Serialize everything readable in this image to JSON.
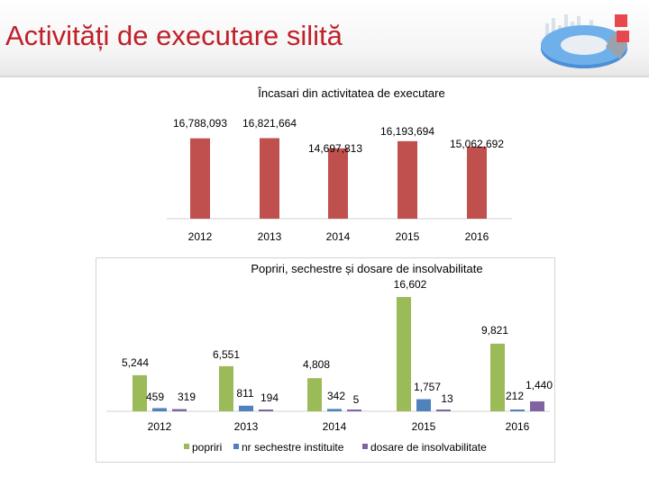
{
  "header": {
    "title": "Activități de executare silită"
  },
  "colors": {
    "title_red": "#c0202a",
    "bar_red": "#c0504d",
    "green": "#9bbb59",
    "blue": "#4f81bd",
    "purple": "#8064a2"
  },
  "chart_data": [
    {
      "type": "bar",
      "title": "Încasari din activitatea de executare",
      "categories": [
        "2012",
        "2013",
        "2014",
        "2015",
        "2016"
      ],
      "values": [
        16788093,
        16821664,
        14697813,
        16193694,
        15062692
      ],
      "value_labels": [
        "16,788,093",
        "16,821,664",
        "14,697,813",
        "16,193,694",
        "15,062,692"
      ],
      "xlabel": "",
      "ylabel": "",
      "grid": false
    },
    {
      "type": "bar",
      "title": "Popriri, sechestre și dosare de insolvabilitate",
      "categories": [
        "2012",
        "2013",
        "2014",
        "2015",
        "2016"
      ],
      "series": [
        {
          "name": "popriri",
          "values": [
            5244,
            6551,
            4808,
            16602,
            9821
          ],
          "labels": [
            "5,244",
            "6,551",
            "4,808",
            "16,602",
            "9,821"
          ]
        },
        {
          "name": "nr sechestre instituite",
          "values": [
            459,
            811,
            342,
            1757,
            212
          ],
          "labels": [
            "459",
            "811",
            "342",
            "1,757",
            "212"
          ]
        },
        {
          "name": "dosare de insolvabilitate",
          "values": [
            319,
            194,
            5,
            13,
            1440
          ],
          "labels": [
            "319",
            "194",
            "5",
            "13",
            "1,440"
          ]
        }
      ],
      "legend": "bottom",
      "grid": false
    }
  ]
}
